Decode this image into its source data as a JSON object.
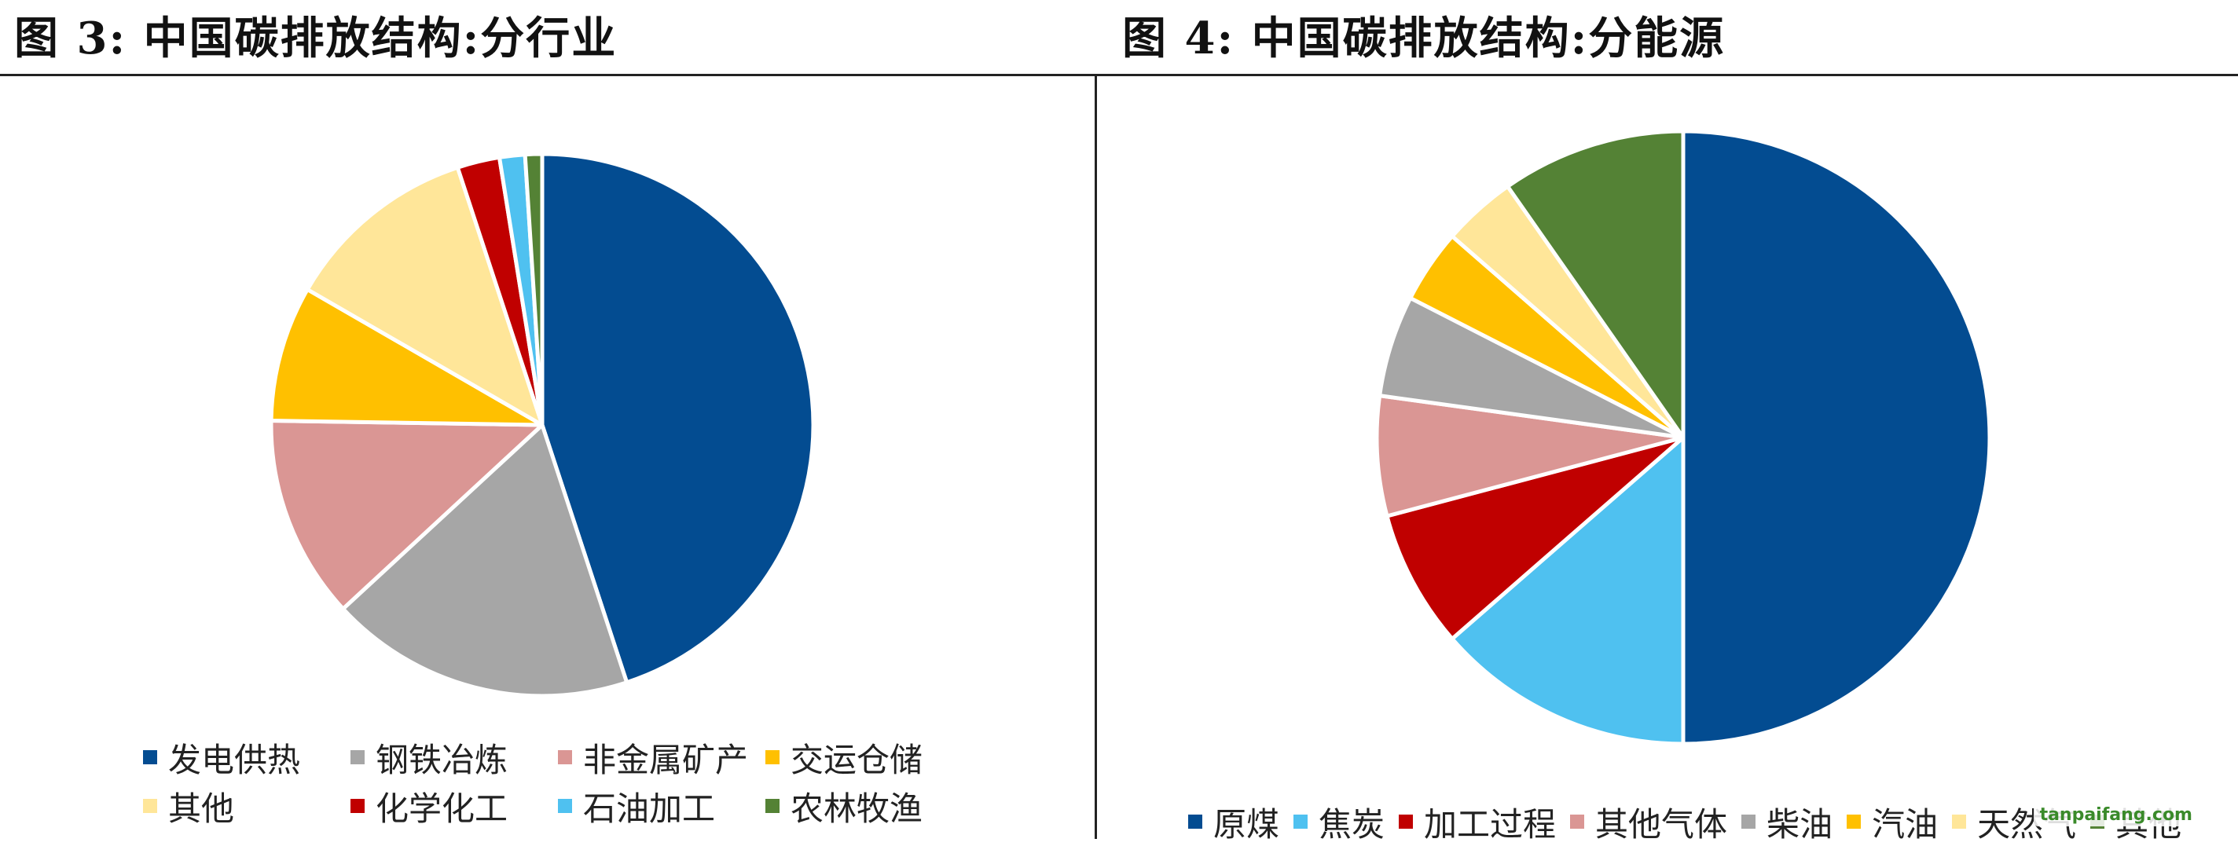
{
  "titles": {
    "left": "图 3:  中国碳排放结构:分行业",
    "right": "图 4:  中国碳排放结构:分能源"
  },
  "watermark": "tanpaifang.com",
  "chart_data": [
    {
      "type": "pie",
      "title": "图 3:  中国碳排放结构:分行业",
      "legend_position": "bottom",
      "slices": [
        {
          "label": "发电供热",
          "value": 44.5,
          "color": "#034C91"
        },
        {
          "label": "钢铁冶炼",
          "value": 18.0,
          "color": "#A6A6A6"
        },
        {
          "label": "非金属矿产",
          "value": 12.0,
          "color": "#DA9694"
        },
        {
          "label": "交运仓储",
          "value": 8.0,
          "color": "#FFC000"
        },
        {
          "label": "其他",
          "value": 11.5,
          "color": "#FFE699"
        },
        {
          "label": "化学化工",
          "value": 2.5,
          "color": "#C00000"
        },
        {
          "label": "石油加工",
          "value": 1.5,
          "color": "#4FC1F0"
        },
        {
          "label": "农林牧渔",
          "value": 1.0,
          "color": "#548235"
        }
      ]
    },
    {
      "type": "pie",
      "title": "图 4:  中国碳排放结构:分能源",
      "legend_position": "bottom",
      "slices": [
        {
          "label": "原煤",
          "value": 51.5,
          "color": "#034C91"
        },
        {
          "label": "焦炭",
          "value": 14.0,
          "color": "#4FC1F0"
        },
        {
          "label": "加工过程",
          "value": 7.5,
          "color": "#C00000"
        },
        {
          "label": "其他气体",
          "value": 6.5,
          "color": "#DA9694"
        },
        {
          "label": "柴油",
          "value": 5.5,
          "color": "#A6A6A6"
        },
        {
          "label": "汽油",
          "value": 4.0,
          "color": "#FFC000"
        },
        {
          "label": "天然气",
          "value": 4.0,
          "color": "#FFE699"
        },
        {
          "label": "其他",
          "value": 10.0,
          "color": "#548235"
        }
      ]
    }
  ]
}
